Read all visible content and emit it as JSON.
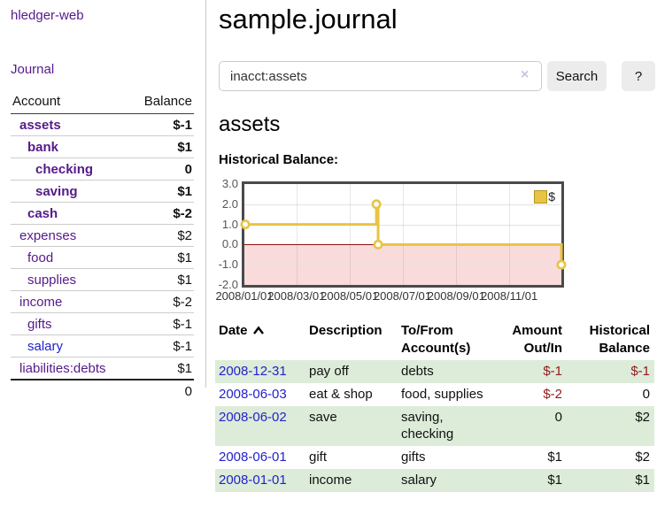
{
  "colors": {
    "link_purple": "#551a8b",
    "link_blue": "#2222cc",
    "negative_red": "#941a1a",
    "dim_negative_red": "#c27878",
    "row_shade_green": "#dcecd9",
    "chart_line_gold": "#e9c344",
    "chart_negative_fill": "#f9dbdb",
    "chart_zero_line": "#8b1111"
  },
  "sidebar": {
    "brand": "hledger-web",
    "journal_link": "Journal",
    "accounts_table": {
      "account_header": "Account",
      "balance_header": "Balance",
      "rows": [
        {
          "name": "assets",
          "indent": 0,
          "bold": true,
          "balance": "$-1",
          "neg": "neg"
        },
        {
          "name": "bank",
          "indent": 1,
          "bold": true,
          "balance": "$1",
          "neg": ""
        },
        {
          "name": "checking",
          "indent": 2,
          "bold": true,
          "balance": "0",
          "neg": ""
        },
        {
          "name": "saving",
          "indent": 2,
          "bold": true,
          "balance": "$1",
          "neg": ""
        },
        {
          "name": "cash",
          "indent": 1,
          "bold": true,
          "balance": "$-2",
          "neg": "neg"
        },
        {
          "name": "expenses",
          "indent": 0,
          "bold": false,
          "balance": "$2",
          "neg": ""
        },
        {
          "name": "food",
          "indent": 1,
          "bold": false,
          "balance": "$1",
          "neg": ""
        },
        {
          "name": "supplies",
          "indent": 1,
          "bold": false,
          "balance": "$1",
          "neg": ""
        },
        {
          "name": "income",
          "indent": 0,
          "bold": false,
          "balance": "$-2",
          "neg": "dimneg"
        },
        {
          "name": "gifts",
          "indent": 1,
          "bold": false,
          "balance": "$-1",
          "neg": "dimneg"
        },
        {
          "name": "salary",
          "indent": 1,
          "bold": false,
          "balance": "$-1",
          "neg": "dimneg",
          "blue": true
        },
        {
          "name": "liabilities:debts",
          "indent": 0,
          "bold": false,
          "balance": "$1",
          "neg": ""
        }
      ],
      "total": "0"
    }
  },
  "header": {
    "title": "sample.journal"
  },
  "search": {
    "query": "inacct:assets",
    "clear_label": "×",
    "button_label": "Search",
    "help_label": "?"
  },
  "account_page": {
    "heading": "assets",
    "chart_title": "Historical Balance:"
  },
  "chart_data": {
    "type": "line",
    "title": "Historical Balance",
    "step": true,
    "xrange": [
      "2008-01-01",
      "2008-12-31"
    ],
    "ylim": [
      -2,
      3
    ],
    "yticks": [
      "3.0",
      "2.0",
      "1.0",
      "0.0",
      "-1.0",
      "-2.0"
    ],
    "xticks": [
      "2008/01/01",
      "2008/03/01",
      "2008/05/01",
      "2008/07/01",
      "2008/09/01",
      "2008/11/01"
    ],
    "grid": true,
    "legend_position": "top-right",
    "legend": [
      {
        "label": "$",
        "color": "#e9c344"
      }
    ],
    "series": [
      {
        "name": "$",
        "points": [
          [
            "2008-01-01",
            1
          ],
          [
            "2008-06-01",
            2
          ],
          [
            "2008-06-03",
            0
          ],
          [
            "2008-12-31",
            -1
          ]
        ]
      }
    ]
  },
  "transactions": {
    "columns": [
      {
        "label": "Date",
        "sorted": true,
        "align": "left"
      },
      {
        "label": "Description",
        "align": "left"
      },
      {
        "label": "To/From Account(s)",
        "align": "left"
      },
      {
        "label": "Amount Out/In",
        "align": "right"
      },
      {
        "label": "Historical Balance",
        "align": "right"
      }
    ],
    "rows": [
      {
        "date": "2008-12-31",
        "description": "pay off",
        "accounts": "debts",
        "amount": "$-1",
        "amount_neg": true,
        "balance": "$-1",
        "balance_neg": true
      },
      {
        "date": "2008-06-03",
        "description": "eat & shop",
        "accounts": "food, supplies",
        "amount": "$-2",
        "amount_neg": true,
        "balance": "0",
        "balance_neg": false
      },
      {
        "date": "2008-06-02",
        "description": "save",
        "accounts": "saving, checking",
        "amount": "0",
        "amount_neg": false,
        "balance": "$2",
        "balance_neg": false
      },
      {
        "date": "2008-06-01",
        "description": "gift",
        "accounts": "gifts",
        "amount": "$1",
        "amount_neg": false,
        "balance": "$2",
        "balance_neg": false
      },
      {
        "date": "2008-01-01",
        "description": "income",
        "accounts": "salary",
        "amount": "$1",
        "amount_neg": false,
        "balance": "$1",
        "balance_neg": false
      }
    ]
  }
}
